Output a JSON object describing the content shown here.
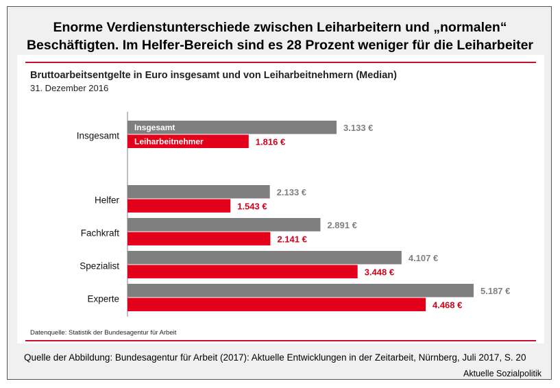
{
  "headline": {
    "line1": "Enorme Verdienstunterschiede zwischen Leiharbeitern und „normalen“",
    "line2": "Beschäftigten. Im Helfer-Bereich sind es 28 Prozent weniger für die Leiharbeiter"
  },
  "chart_data": {
    "type": "bar",
    "orientation": "horizontal",
    "title": "Bruttoarbeitsentgelte in Euro insgesamt und von Leiharbeitnehmern (Median)",
    "subtitle": "31. Dezember 2016",
    "categories": [
      "Insgesamt",
      "Helfer",
      "Fachkraft",
      "Spezialist",
      "Experte"
    ],
    "series": [
      {
        "name": "Insgesamt",
        "color": "#7f7f7f",
        "values": [
          3133,
          2133,
          2891,
          4107,
          5187
        ],
        "labels": [
          "3.133 €",
          "2.133 €",
          "2.891 €",
          "4.107 €",
          "5.187 €"
        ]
      },
      {
        "name": "Leiharbeitnehmer",
        "color": "#e2001a",
        "values": [
          1816,
          1543,
          2141,
          3448,
          4468
        ],
        "labels": [
          "1.816 €",
          "1.543 €",
          "2.141 €",
          "3.448 €",
          "4.468 €"
        ]
      }
    ],
    "xlabel": "",
    "ylabel": "",
    "xlim": [
      0,
      5200
    ],
    "grid": false,
    "legend": "inside-first-bars",
    "label_colors": {
      "Insgesamt": "#808080",
      "Leiharbeitnehmer": "#d0021b"
    }
  },
  "footer": {
    "datasource": "Datenquelle:  Statistik der Bundesagentur für Arbeit",
    "source": "Quelle der Abbildung: Bundesagentur für Arbeit (2017): Aktuelle Entwicklungen in der Zeitarbeit, Nürnberg, Juli 2017, S. 20",
    "brand": "Aktuelle Sozialpolitik"
  }
}
